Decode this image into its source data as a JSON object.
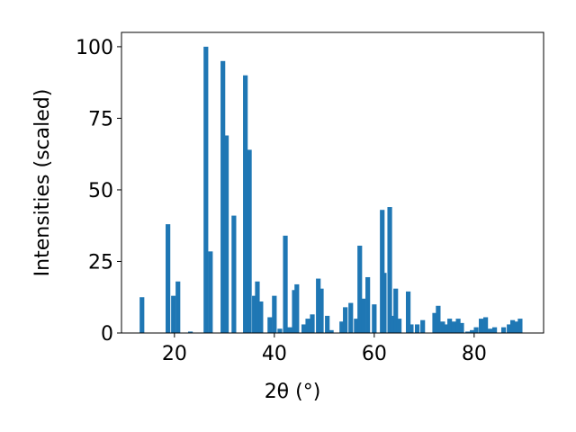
{
  "chart_data": {
    "type": "bar",
    "xlabel": "2θ (°)",
    "ylabel": "Intensities (scaled)",
    "color": "#1f77b4",
    "xlim": [
      9.4,
      93.9
    ],
    "ylim": [
      0,
      105
    ],
    "xticks": [
      20,
      40,
      60,
      80
    ],
    "yticks": [
      0,
      25,
      50,
      75,
      100
    ],
    "x": [
      13.5,
      18.7,
      19.8,
      20.7,
      23.2,
      26.3,
      27.2,
      29.7,
      30.4,
      31.9,
      34.2,
      35.0,
      36.0,
      36.6,
      37.3,
      39.1,
      40.0,
      41.1,
      42.2,
      43.1,
      44.0,
      44.5,
      45.9,
      46.7,
      47.6,
      48.8,
      49.4,
      50.6,
      51.4,
      53.5,
      54.2,
      55.3,
      56.4,
      57.1,
      57.8,
      58.7,
      60.0,
      61.6,
      62.0,
      63.1,
      63.6,
      64.3,
      65.0,
      66.8,
      67.4,
      68.6,
      69.7,
      72.1,
      72.8,
      73.7,
      74.4,
      75.1,
      75.9,
      76.8,
      77.5,
      78.7,
      79.6,
      80.4,
      81.4,
      82.3,
      83.2,
      84.1,
      85.9,
      87.0,
      87.7,
      88.6,
      89.2
    ],
    "values": [
      12.5,
      38,
      13,
      18,
      0.5,
      100,
      28.5,
      95,
      69,
      41,
      90,
      64,
      13,
      18,
      11,
      5.5,
      13,
      1.5,
      34,
      2,
      15,
      17,
      3,
      5,
      6.5,
      19,
      15.5,
      6,
      1,
      4,
      9,
      10.5,
      5,
      30.5,
      12,
      19.5,
      10,
      43,
      21,
      44,
      6,
      15.5,
      5,
      14.5,
      3,
      3,
      4.5,
      7,
      9.5,
      4,
      3,
      5,
      4,
      5,
      3.5,
      0.5,
      1,
      2,
      5,
      5.5,
      1.5,
      2,
      2,
      3,
      4.5,
      4,
      5
    ]
  }
}
